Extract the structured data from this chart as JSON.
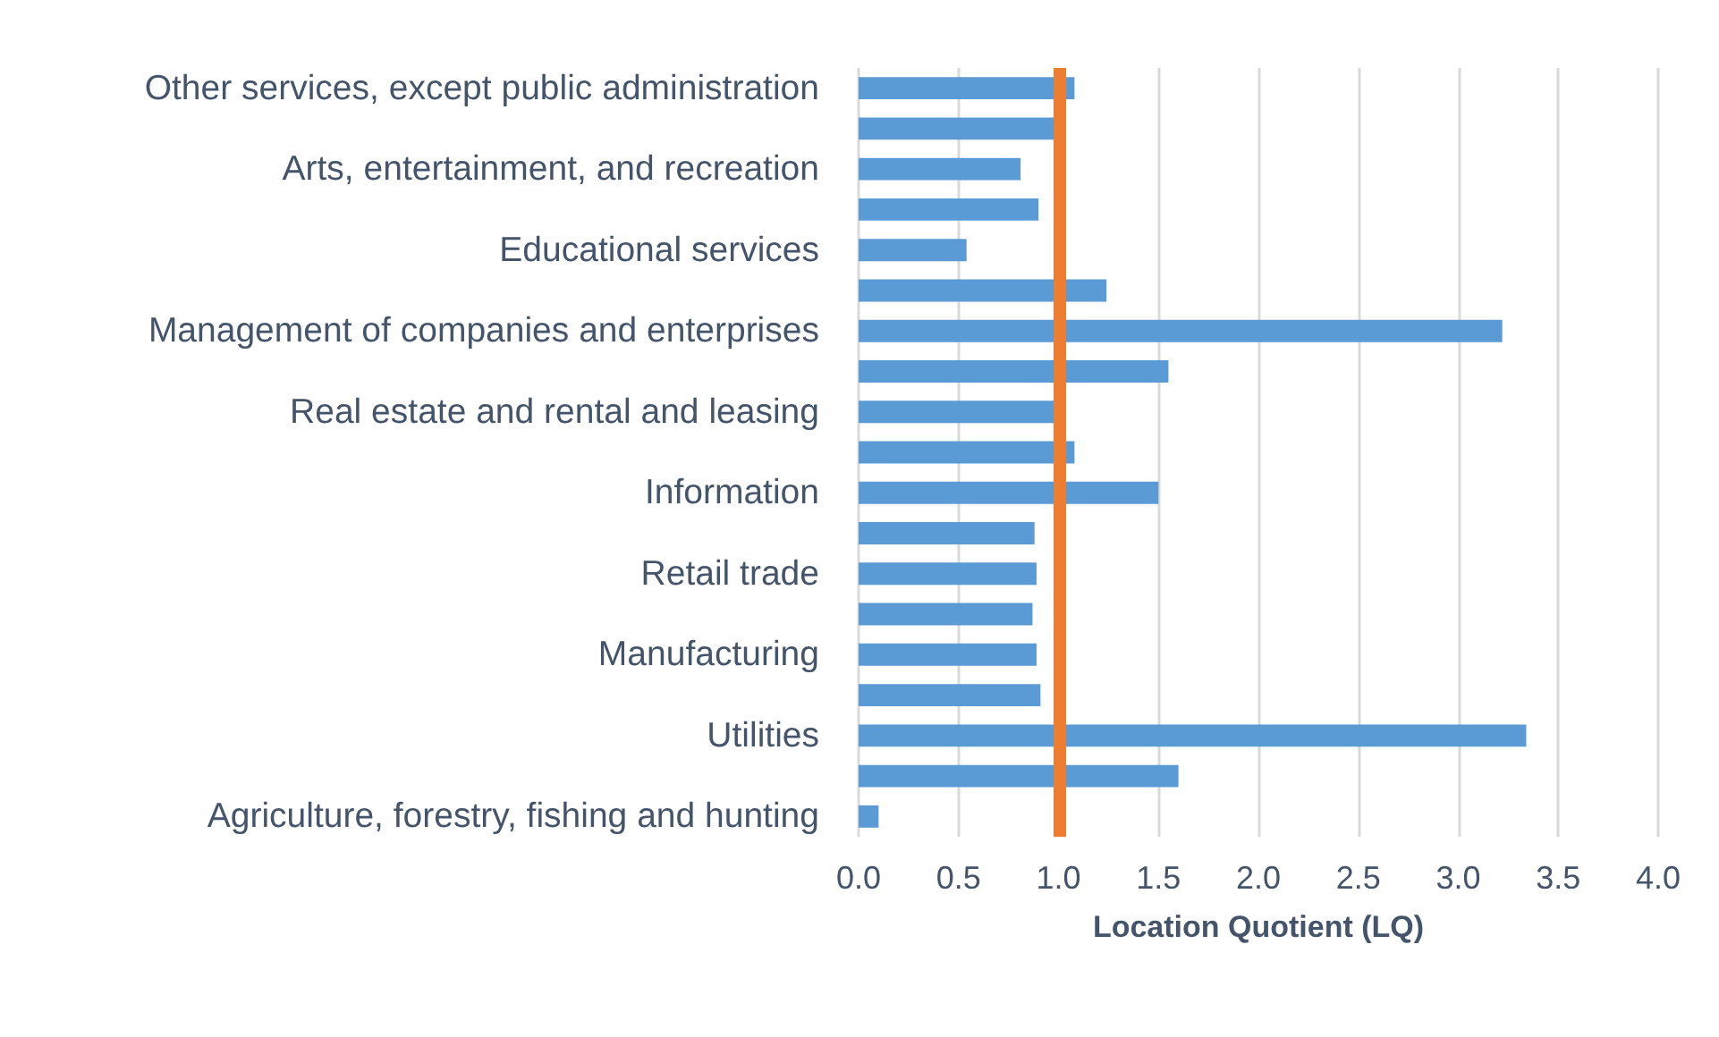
{
  "chart_data": {
    "type": "bar",
    "orientation": "horizontal",
    "xlabel": "Location Quotient (LQ)",
    "categories": [
      "Other services, except public administration",
      null,
      "Arts, entertainment, and recreation",
      null,
      "Educational services",
      null,
      "Management of companies and enterprises",
      null,
      "Real estate and rental and leasing",
      null,
      "Information",
      null,
      "Retail trade",
      null,
      "Manufacturing",
      null,
      "Utilities",
      null,
      "Agriculture, forestry, fishing and hunting"
    ],
    "values": [
      1.08,
      0.98,
      0.81,
      0.9,
      0.54,
      1.24,
      3.22,
      1.55,
      0.98,
      1.08,
      1.5,
      0.88,
      0.89,
      0.87,
      0.89,
      0.91,
      3.34,
      1.6,
      0.1
    ],
    "color": "#5b9bd5",
    "xlim": [
      0,
      4
    ],
    "xticks": [
      {
        "value": 0,
        "label": "0.0"
      },
      {
        "value": 0.5,
        "label": "0.5"
      },
      {
        "value": 1,
        "label": "1.0"
      },
      {
        "value": 1.5,
        "label": "1.5"
      },
      {
        "value": 2,
        "label": "2.0"
      },
      {
        "value": 2.5,
        "label": "2.5"
      },
      {
        "value": 3,
        "label": "3.0"
      },
      {
        "value": 3.5,
        "label": "3.5"
      },
      {
        "value": 4,
        "label": "4.0"
      }
    ],
    "grid": "x",
    "ref_lines": [
      {
        "axis": "x",
        "value": 1,
        "color": "#ed7d31",
        "line_style": "solid"
      }
    ]
  }
}
